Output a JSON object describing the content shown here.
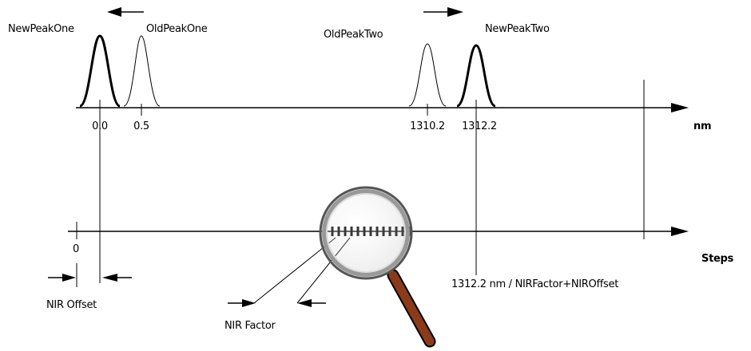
{
  "peaks": [
    {
      "label": "NewPeakOne",
      "tick": "0.0"
    },
    {
      "label": "OldPeakOne",
      "tick": "0.5"
    },
    {
      "label": "OldPeakTwo",
      "tick": "1310.2"
    },
    {
      "label": "NewPeakTwo",
      "tick": "1312.2"
    }
  ],
  "axes": {
    "top_unit": "nm",
    "bottom_unit": "Steps",
    "bottom_zero": "0"
  },
  "annotations": {
    "offset": "NIR Offset",
    "factor": "NIR Factor",
    "formula": "1312.2 nm / NIRFactor+NIROffset"
  }
}
